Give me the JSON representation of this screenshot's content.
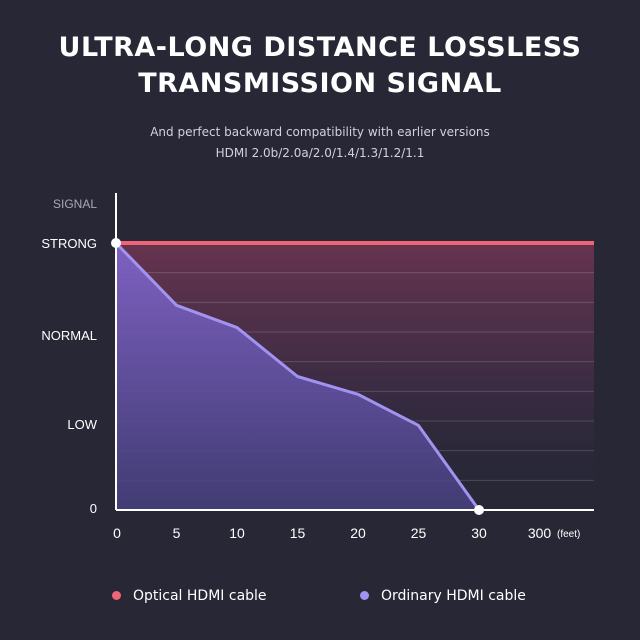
{
  "header": {
    "title_line1": "ULTRA-LONG DISTANCE LOSSLESS",
    "title_line2": "TRANSMISSION SIGNAL",
    "subtitle_line1": "And perfect backward compatibility with earlier versions",
    "subtitle_line2": "HDMI 2.0b/2.0a/2.0/1.4/1.3/1.2/1.1"
  },
  "colors": {
    "background": "#272736",
    "optical": "#ef6477",
    "ordinary": "#a393f0"
  },
  "chart_data": {
    "type": "line",
    "title": "ULTRA-LONG DISTANCE LOSSLESS TRANSMISSION SIGNAL",
    "ylabel": "SIGNAL",
    "xlabel": "",
    "x_unit": "(feet)",
    "categories": [
      "0",
      "5",
      "10",
      "15",
      "20",
      "25",
      "30",
      "300"
    ],
    "y_ticks": [
      {
        "label": "STRONG",
        "value": 3
      },
      {
        "label": "NORMAL",
        "value": 2
      },
      {
        "label": "LOW",
        "value": 1
      },
      {
        "label": "0",
        "value": 0
      }
    ],
    "ylim": [
      0,
      3
    ],
    "grid": true,
    "legend_position": "bottom",
    "series": [
      {
        "name": "Optical HDMI cable",
        "color": "#ef6477",
        "x": [
          "0",
          "5",
          "10",
          "15",
          "20",
          "25",
          "30",
          "300"
        ],
        "values": [
          3,
          3,
          3,
          3,
          3,
          3,
          3,
          3
        ]
      },
      {
        "name": "Ordinary HDMI cable",
        "color": "#a393f0",
        "x": [
          "0",
          "5",
          "10",
          "15",
          "20",
          "25",
          "30"
        ],
        "values": [
          3,
          2.3,
          2.05,
          1.5,
          1.3,
          0.95,
          0
        ]
      }
    ]
  }
}
